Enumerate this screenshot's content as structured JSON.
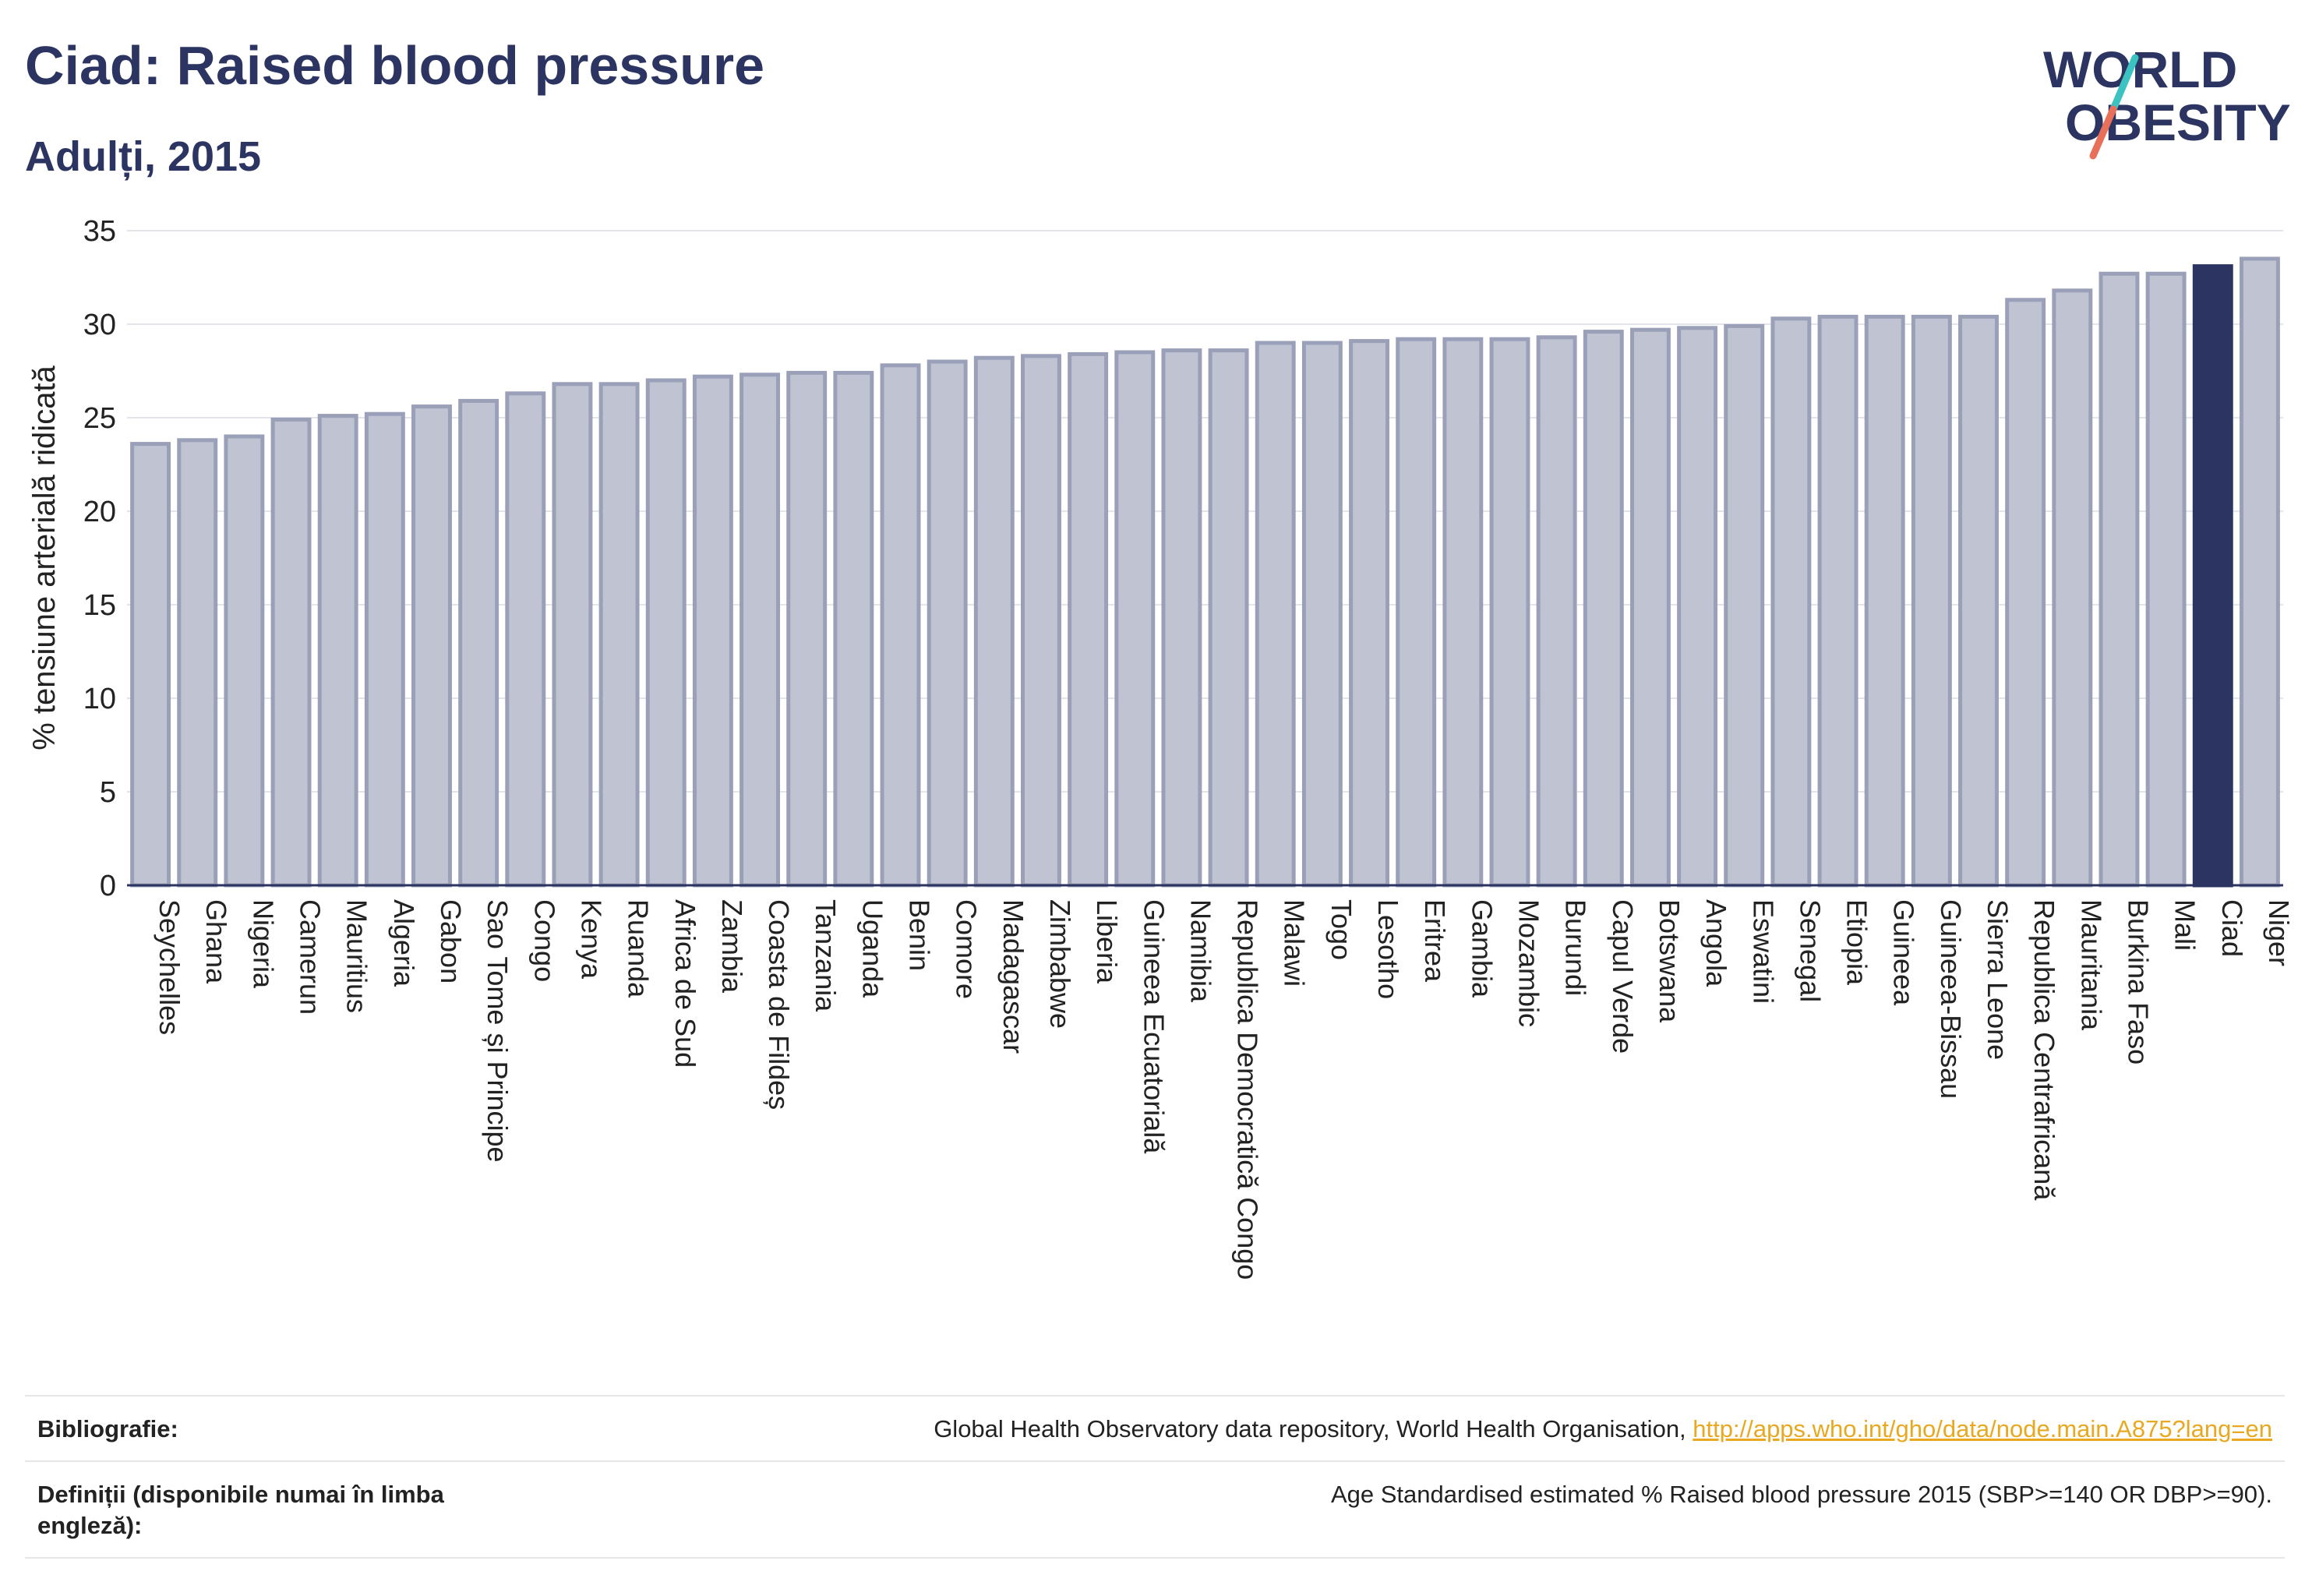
{
  "header": {
    "title": "Ciad: Raised blood pressure",
    "subtitle": "Adulți, 2015"
  },
  "logo": {
    "line1": "WORLD",
    "line2": "OBESITY",
    "brand_color": "#2c3561",
    "slash_colors": [
      "#3cc2c0",
      "#e8705a"
    ]
  },
  "chart_data": {
    "type": "bar",
    "ylabel": "% tensiune arterială ridicată",
    "ylim": [
      0,
      35
    ],
    "yticks": [
      0,
      5,
      10,
      15,
      20,
      25,
      30,
      35
    ],
    "grid": true,
    "highlight": "Ciad",
    "colors": {
      "bar": "#c0c3d1",
      "bar_edge": "#9aa0b8",
      "highlight": "#2c3561"
    },
    "categories": [
      "Seychelles",
      "Ghana",
      "Nigeria",
      "Camerun",
      "Mauritius",
      "Algeria",
      "Gabon",
      "Sao Tome și Principe",
      "Congo",
      "Kenya",
      "Ruanda",
      "Africa de Sud",
      "Zambia",
      "Coasta de Fildeș",
      "Tanzania",
      "Uganda",
      "Benin",
      "Comore",
      "Madagascar",
      "Zimbabwe",
      "Liberia",
      "Guineea Ecuatorială",
      "Namibia",
      "Republica Democratică Congo",
      "Malawi",
      "Togo",
      "Lesotho",
      "Eritrea",
      "Gambia",
      "Mozambic",
      "Burundi",
      "Capul Verde",
      "Botswana",
      "Angola",
      "Eswatini",
      "Senegal",
      "Etiopia",
      "Guineea",
      "Guineea-Bissau",
      "Sierra Leone",
      "Republica Centrafricană",
      "Mauritania",
      "Burkina Faso",
      "Mali",
      "Ciad",
      "Niger"
    ],
    "values": [
      23.6,
      23.8,
      24.0,
      24.9,
      25.1,
      25.2,
      25.6,
      25.9,
      26.3,
      26.8,
      26.8,
      27.0,
      27.2,
      27.3,
      27.4,
      27.4,
      27.8,
      28.0,
      28.2,
      28.3,
      28.4,
      28.5,
      28.6,
      28.6,
      29.0,
      29.0,
      29.1,
      29.2,
      29.2,
      29.2,
      29.3,
      29.6,
      29.7,
      29.8,
      29.9,
      30.3,
      30.4,
      30.4,
      30.4,
      30.4,
      31.3,
      31.8,
      32.7,
      32.7,
      33.1,
      33.5
    ]
  },
  "footer": {
    "bibliography_label": "Bibliografie:",
    "bibliography_text": "Global Health Observatory data repository, World Health Organisation, ",
    "bibliography_link": "http://apps.who.int/gho/data/node.main.A875?lang=en",
    "definitions_label": "Definiții (disponibile numai în limba engleză):",
    "definitions_text": "Age Standardised estimated % Raised blood pressure 2015 (SBP>=140 OR DBP>=90)."
  }
}
